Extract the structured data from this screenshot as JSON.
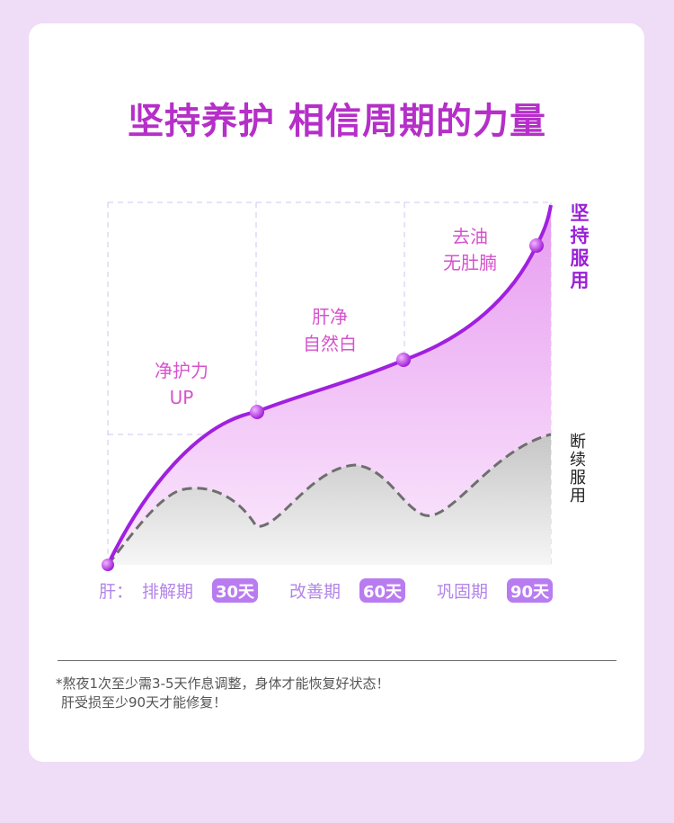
{
  "title": "坚持养护 相信周期的力量",
  "chart_data": {
    "type": "area",
    "title": "坚持养护 相信周期的力量",
    "x_prefix": "肝：",
    "periods": [
      {
        "label": "排解期",
        "badge": "30天",
        "days": 30
      },
      {
        "label": "改善期",
        "badge": "60天",
        "days": 60
      },
      {
        "label": "巩固期",
        "badge": "90天",
        "days": 90
      }
    ],
    "series": [
      {
        "name": "坚持服用",
        "style": "solid",
        "color": "#a020e0",
        "x": [
          0,
          30,
          60,
          80,
          90
        ],
        "y": [
          0,
          0.59,
          0.84,
          1.16,
          1.34
        ]
      },
      {
        "name": "断续服用",
        "style": "dashed",
        "color": "#6e6e6e",
        "x": [
          0,
          12,
          30,
          45,
          63,
          90
        ],
        "y": [
          0,
          0.29,
          0.15,
          0.38,
          0.2,
          0.48
        ]
      }
    ],
    "annotations": [
      {
        "lines": [
          "净护力",
          "UP"
        ],
        "x": 30
      },
      {
        "lines": [
          "肝净",
          "自然白"
        ],
        "x": 60
      },
      {
        "lines": [
          "去油",
          "无肚腩"
        ],
        "x": 80
      }
    ]
  },
  "notes": [
    "*熬夜1次至少需3-5天作息调整，身体才能恢复好状态！",
    "肝受损至少90天才能修复！"
  ]
}
